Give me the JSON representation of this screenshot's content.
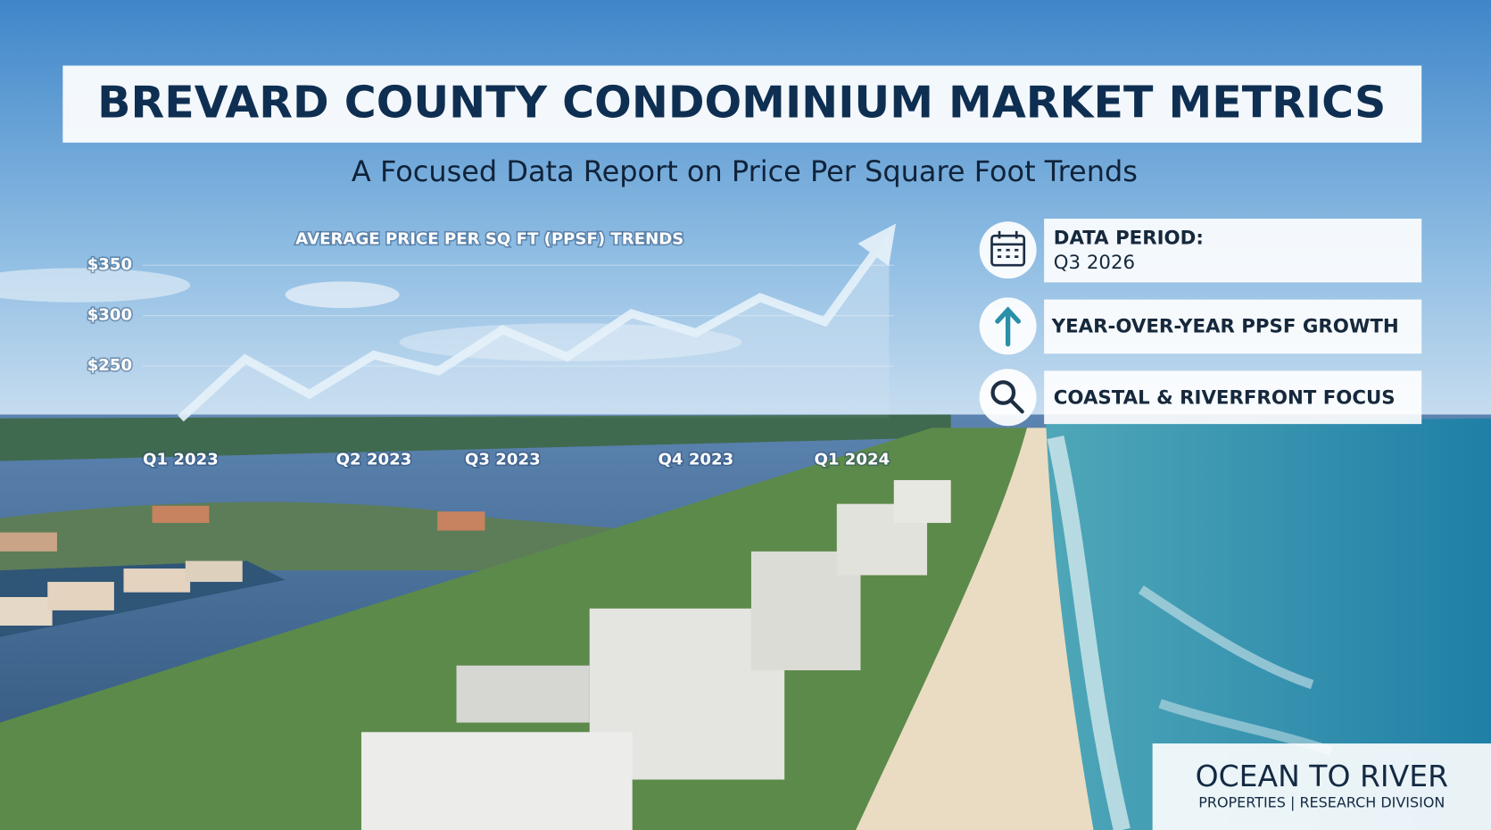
{
  "header": {
    "title": "BREVARD COUNTY CONDOMINIUM MARKET METRICS",
    "subtitle": "A Focused Data Report on Price Per Square Foot Trends"
  },
  "chart_data": {
    "type": "line",
    "title": "AVERAGE PRICE PER SQ FT (PPSF) TRENDS",
    "categories": [
      "Q1 2023",
      null,
      null,
      "Q2 2023",
      null,
      "Q3 2023",
      null,
      null,
      "Q4 2023",
      null,
      null,
      "Q1 2024"
    ],
    "values": [
      198,
      257,
      222,
      261,
      245,
      286,
      259,
      302,
      283,
      318,
      294,
      382
    ],
    "color": "#e6f2fa",
    "ylim": [
      175,
      400
    ],
    "yticks": [
      {
        "value": 250,
        "label": "$250"
      },
      {
        "value": 300,
        "label": "$300"
      },
      {
        "value": 350,
        "label": "$350"
      }
    ],
    "grid": true
  },
  "panel": [
    {
      "label": "DATA PERIOD:",
      "detail": "Q3 2026"
    },
    {
      "label": "YEAR-OVER-YEAR PPSF GROWTH"
    },
    {
      "label": "COASTAL & RIVERFRONT FOCUS"
    }
  ],
  "brand": {
    "name": "OCEAN TO RIVER",
    "tagline": "PROPERTIES | RESEARCH DIVISION"
  }
}
